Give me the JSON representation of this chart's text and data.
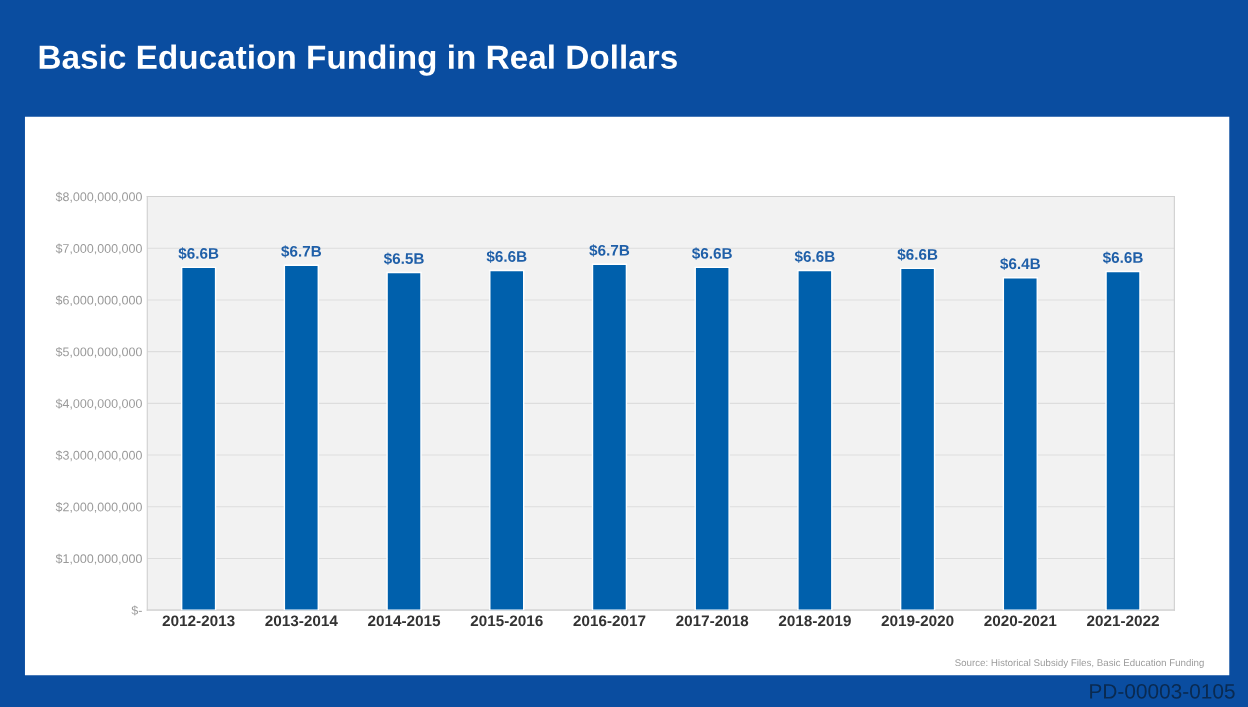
{
  "chart_data": {
    "type": "bar",
    "title": "Basic Education Funding in Real Dollars",
    "categories": [
      "2012-2013",
      "2013-2014",
      "2014-2015",
      "2015-2016",
      "2016-2017",
      "2017-2018",
      "2018-2019",
      "2019-2020",
      "2020-2021",
      "2021-2022"
    ],
    "values": [
      6630000000,
      6670000000,
      6530000000,
      6570000000,
      6690000000,
      6630000000,
      6570000000,
      6610000000,
      6430000000,
      6550000000
    ],
    "value_labels": [
      "$6.6B",
      "$6.7B",
      "$6.5B",
      "$6.6B",
      "$6.7B",
      "$6.6B",
      "$6.6B",
      "$6.6B",
      "$6.4B",
      "$6.6B"
    ],
    "color": "#0060ac",
    "ylim": [
      0,
      8000000000
    ],
    "yticks": [
      {
        "value": 0,
        "label": "$-"
      },
      {
        "value": 1000000000,
        "label": "$1,000,000,000"
      },
      {
        "value": 2000000000,
        "label": "$2,000,000,000"
      },
      {
        "value": 3000000000,
        "label": "$3,000,000,000"
      },
      {
        "value": 4000000000,
        "label": "$4,000,000,000"
      },
      {
        "value": 5000000000,
        "label": "$5,000,000,000"
      },
      {
        "value": 6000000000,
        "label": "$6,000,000,000"
      },
      {
        "value": 7000000000,
        "label": "$7,000,000,000"
      },
      {
        "value": 8000000000,
        "label": "$8,000,000,000"
      }
    ],
    "grid": "y",
    "annotations": [
      "Source: Historical Subsidy Files, Basic Education Funding",
      "PD-00003-0105"
    ]
  }
}
